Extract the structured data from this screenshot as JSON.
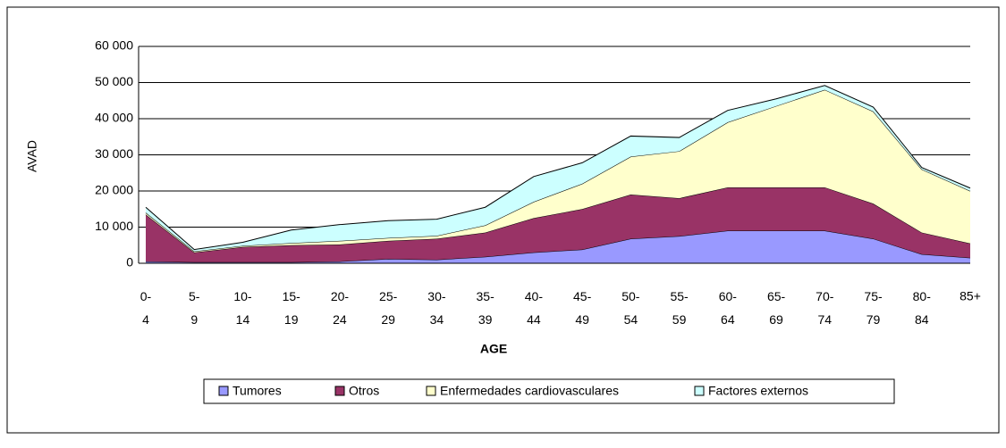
{
  "chart_data": {
    "type": "stacked-area",
    "y_label": "AVAD",
    "x_label": "AGE",
    "categories": [
      "0-4",
      "5-9",
      "10-14",
      "15-19",
      "20-24",
      "25-29",
      "30-34",
      "35-39",
      "40-44",
      "45-49",
      "50-54",
      "55-59",
      "60-64",
      "65-69",
      "70-74",
      "75-79",
      "80-84",
      "85+"
    ],
    "series": [
      {
        "name": "Tumores",
        "color": "#9999ff",
        "values": [
          500,
          300,
          300,
          300,
          500,
          1200,
          1000,
          1800,
          3000,
          3800,
          6800,
          7500,
          9000,
          9000,
          9000,
          6800,
          2500,
          1500
        ]
      },
      {
        "name": "Otros",
        "color": "#993366",
        "values": [
          13000,
          2700,
          4200,
          4700,
          4700,
          5000,
          5800,
          6700,
          9500,
          11200,
          12200,
          10500,
          12000,
          12000,
          12000,
          9700,
          6000,
          4000
        ]
      },
      {
        "name": "Enfermedades cardiovasculares",
        "color": "#ffffcc",
        "values": [
          500,
          300,
          300,
          600,
          1000,
          800,
          800,
          2000,
          4500,
          7000,
          10500,
          13000,
          18000,
          22500,
          27000,
          25500,
          17500,
          14500
        ]
      },
      {
        "name": "Factores externos",
        "color": "#ccffff",
        "values": [
          1500,
          500,
          1000,
          3600,
          4500,
          4800,
          4600,
          5000,
          7000,
          5800,
          5700,
          3800,
          3300,
          2000,
          1200,
          1200,
          500,
          800
        ]
      }
    ],
    "ylim": [
      0,
      60000
    ],
    "yticks": [
      {
        "value": 0,
        "label": "0"
      },
      {
        "value": 10000,
        "label": "10 000"
      },
      {
        "value": 20000,
        "label": "20 000"
      },
      {
        "value": 30000,
        "label": "30 000"
      },
      {
        "value": 40000,
        "label": "40 000"
      },
      {
        "value": 50000,
        "label": "50 000"
      },
      {
        "value": 60000,
        "label": "60 000"
      }
    ],
    "grid": true,
    "legend": "bottom"
  }
}
